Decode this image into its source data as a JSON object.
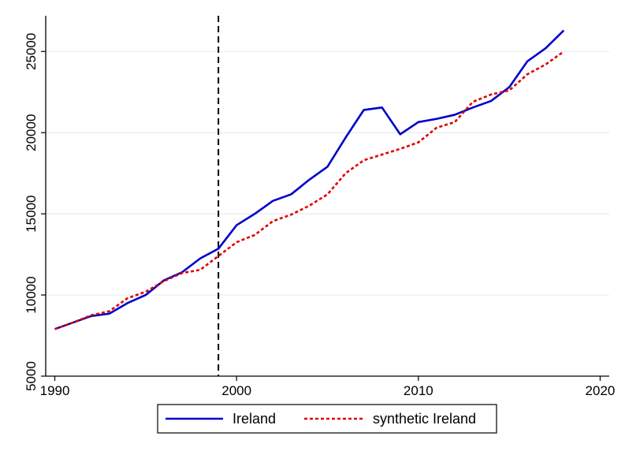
{
  "chart_data": {
    "type": "line",
    "title": "",
    "xlabel": "",
    "ylabel": "",
    "xlim": [
      1989.5,
      2020.5
    ],
    "ylim": [
      5000,
      27200
    ],
    "x_ticks": [
      1990,
      2000,
      2010,
      2020
    ],
    "y_ticks": [
      5000,
      10000,
      15000,
      20000,
      25000
    ],
    "x_tick_labels": [
      "1990",
      "2000",
      "2010",
      "2020"
    ],
    "y_tick_labels": [
      "5000",
      "10000",
      "15000",
      "20000",
      "25000"
    ],
    "grid": true,
    "intervention_year": 1999,
    "legend_position": "bottom",
    "x": [
      1990,
      1991,
      1992,
      1993,
      1994,
      1995,
      1996,
      1997,
      1998,
      1999,
      2000,
      2001,
      2002,
      2003,
      2004,
      2005,
      2006,
      2007,
      2008,
      2009,
      2010,
      2011,
      2012,
      2013,
      2014,
      2015,
      2016,
      2017,
      2018
    ],
    "series": [
      {
        "name": "Ireland",
        "color": "#0000cc",
        "style": "solid",
        "values": [
          7900,
          8300,
          8700,
          8850,
          9500,
          10000,
          10900,
          11400,
          12250,
          12850,
          14300,
          15000,
          15800,
          16200,
          17100,
          17900,
          19700,
          21400,
          21550,
          19900,
          20650,
          20850,
          21100,
          21550,
          21950,
          22800,
          24400,
          25200,
          26300
        ]
      },
      {
        "name": "synthetic Ireland",
        "color": "#dd0000",
        "style": "dotted",
        "values": [
          7900,
          8300,
          8750,
          9000,
          9800,
          10200,
          10850,
          11350,
          11550,
          12400,
          13250,
          13700,
          14550,
          14950,
          15500,
          16200,
          17500,
          18300,
          18650,
          19000,
          19400,
          20300,
          20650,
          21900,
          22350,
          22600,
          23600,
          24200,
          25000
        ]
      }
    ]
  }
}
